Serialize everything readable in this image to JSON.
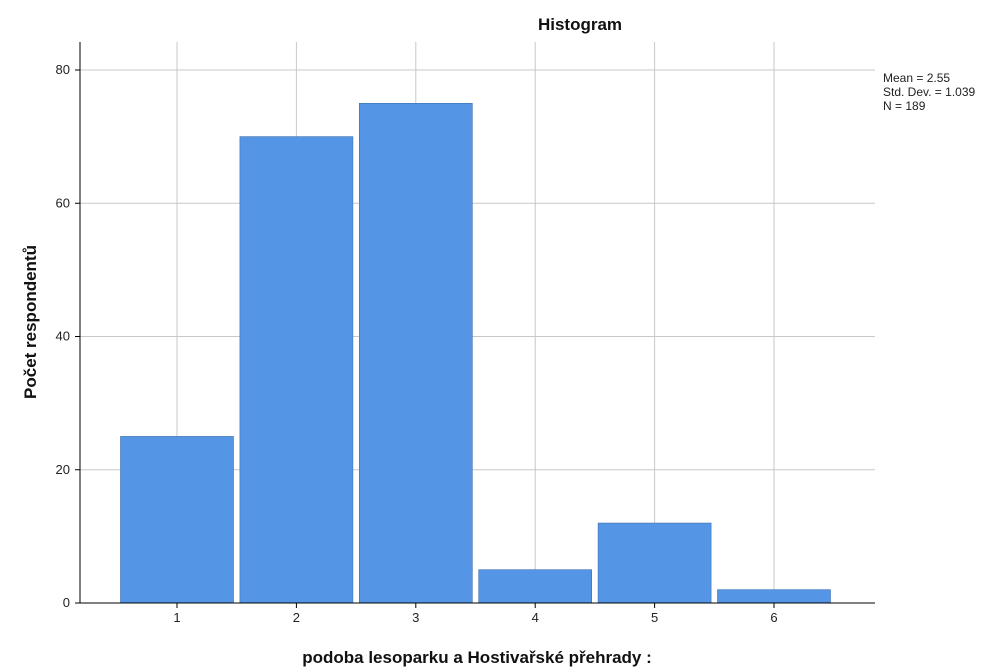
{
  "chart_data": {
    "type": "bar",
    "title": "Histogram",
    "xlabel": "podoba lesoparku a Hostivařské přehrady :",
    "ylabel": "Počet respondentů",
    "categories": [
      "1",
      "2",
      "3",
      "4",
      "5",
      "6"
    ],
    "values": [
      25,
      70,
      75,
      5,
      12,
      2
    ],
    "ylim": [
      0,
      80
    ],
    "yticks": [
      "0",
      "20",
      "40",
      "60",
      "80"
    ],
    "grid": true,
    "bar_color": "#5595e5",
    "stats": {
      "mean": "Mean = 2.55",
      "std": "Std. Dev. = 1.039",
      "n": "N = 189"
    }
  }
}
